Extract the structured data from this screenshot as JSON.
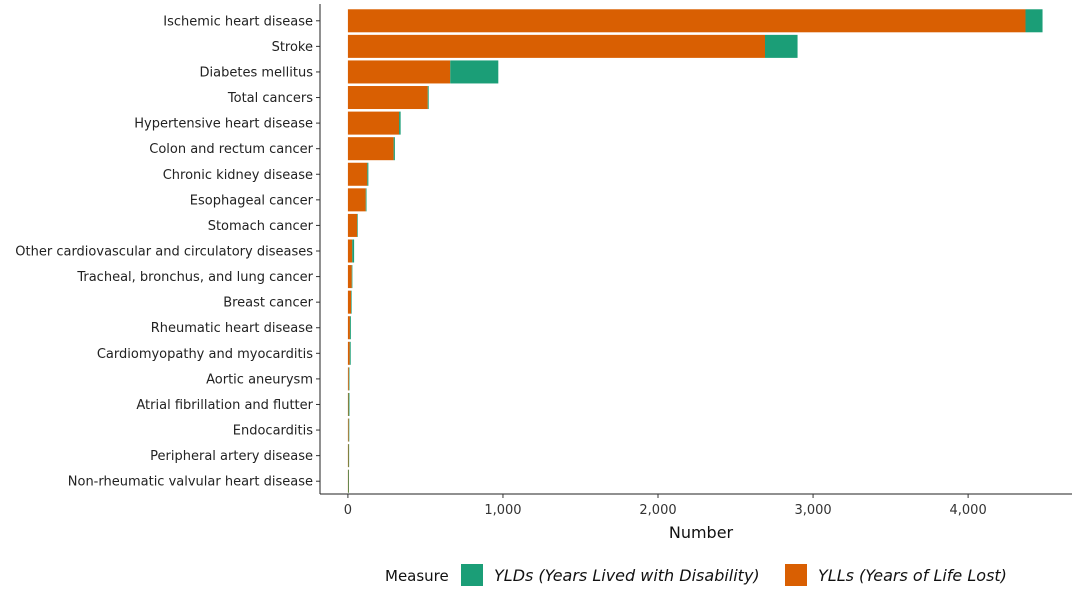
{
  "chart_data": {
    "type": "bar",
    "orientation": "horizontal",
    "stacked": true,
    "categories": [
      "Ischemic heart disease",
      "Stroke",
      "Diabetes mellitus",
      "Total cancers",
      "Hypertensive heart disease",
      "Colon and rectum cancer",
      "Chronic kidney disease",
      "Esophageal cancer",
      "Stomach cancer",
      "Other cardiovascular and circulatory diseases",
      "Tracheal, bronchus, and lung cancer",
      "Breast cancer",
      "Rheumatic heart disease",
      "Cardiomyopathy and myocarditis",
      "Aortic aneurysm",
      "Atrial fibrillation and flutter",
      "Endocarditis",
      "Peripheral artery disease",
      "Non-rheumatic valvular heart disease"
    ],
    "series": [
      {
        "name": "YLLs (Years of Life Lost)",
        "color": "#D95F02",
        "values": [
          4370,
          2690,
          660,
          515,
          330,
          295,
          125,
          115,
          60,
          28,
          25,
          20,
          13,
          12,
          6,
          4,
          5,
          4,
          3
        ]
      },
      {
        "name": "YLDs (Years Lived with Disability)",
        "color": "#1B9E77",
        "values": [
          110,
          210,
          310,
          6,
          10,
          8,
          7,
          5,
          2,
          12,
          1,
          2,
          6,
          6,
          1,
          6,
          1,
          1,
          1
        ]
      }
    ],
    "xlabel": "Number",
    "ylabel": "",
    "xlim": [
      -180,
      4670
    ],
    "xticks": [
      0,
      1000,
      2000,
      3000,
      4000
    ],
    "xtick_labels": [
      "0",
      "1,000",
      "2,000",
      "3,000",
      "4,000"
    ],
    "grid": false,
    "legend": {
      "position": "bottom",
      "title": "Measure",
      "entries": [
        {
          "label": "YLDs (Years Lived with Disability)",
          "color": "#1B9E77"
        },
        {
          "label": "YLLs (Years of Life Lost)",
          "color": "#D95F02"
        }
      ]
    }
  }
}
